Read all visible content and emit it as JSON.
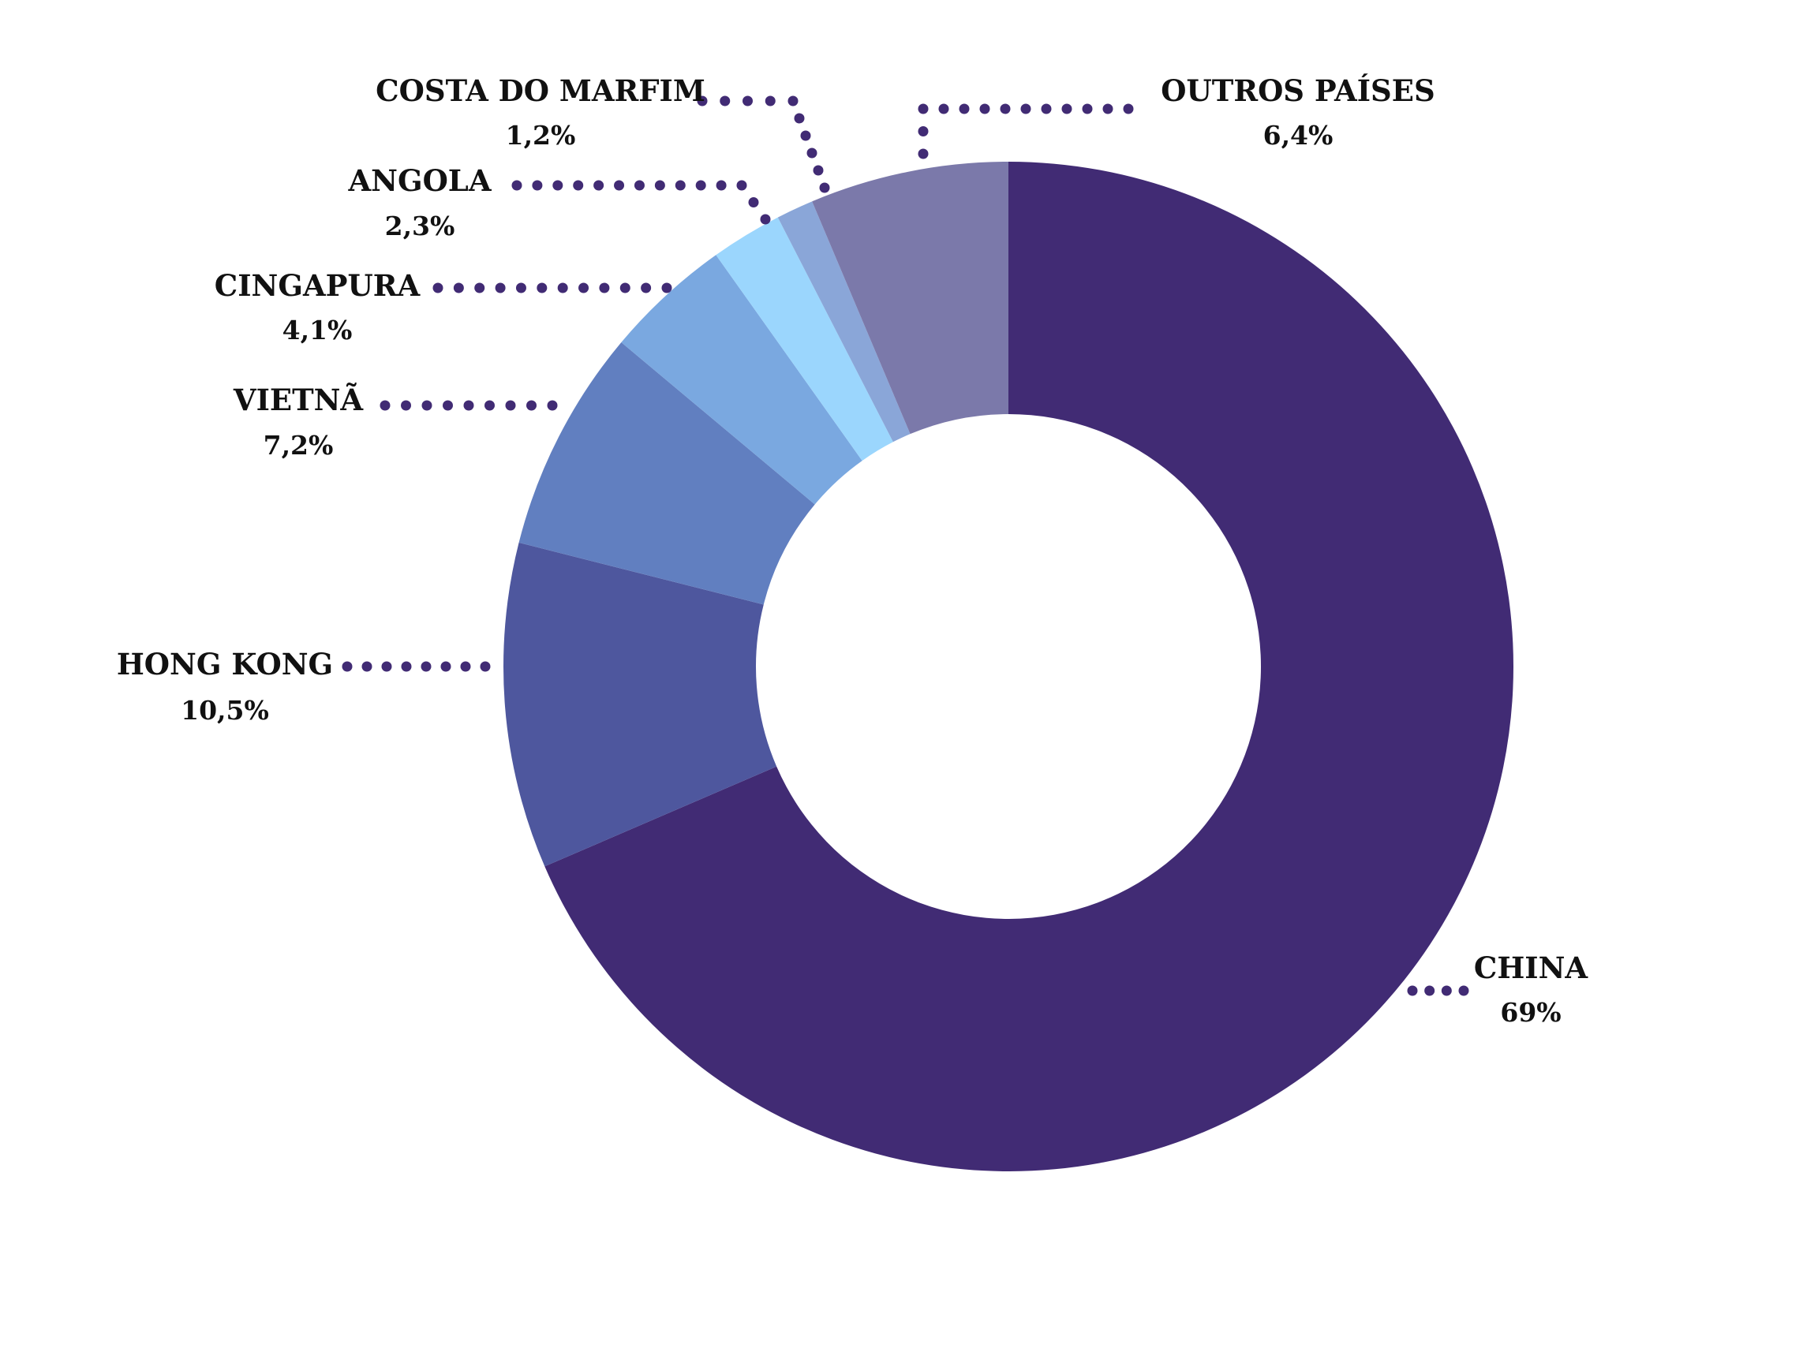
{
  "chart_data": {
    "type": "pie",
    "variant": "donut",
    "title": "",
    "legend": "none",
    "slices": [
      {
        "label": "CHINA",
        "value": 69,
        "value_label": "69%",
        "color": "#412b74"
      },
      {
        "label": "HONG KONG",
        "value": 10.5,
        "value_label": "10,5%",
        "color": "#4e579e"
      },
      {
        "label": "VIETNÃ",
        "value": 7.2,
        "value_label": "7,2%",
        "color": "#617fc0"
      },
      {
        "label": "CINGAPURA",
        "value": 4.1,
        "value_label": "4,1%",
        "color": "#7aa8e0"
      },
      {
        "label": "ANGOLA",
        "value": 2.3,
        "value_label": "2,3%",
        "color": "#9bd6fd"
      },
      {
        "label": "COSTA DO MARFIM",
        "value": 1.2,
        "value_label": "1,2%",
        "color": "#8aa6d8"
      },
      {
        "label": "OUTROS PAÍSES",
        "value": 6.4,
        "value_label": "6,4%",
        "color": "#7b79aa"
      }
    ],
    "leader_line_color": "#412b74",
    "label_color": "#111111"
  }
}
